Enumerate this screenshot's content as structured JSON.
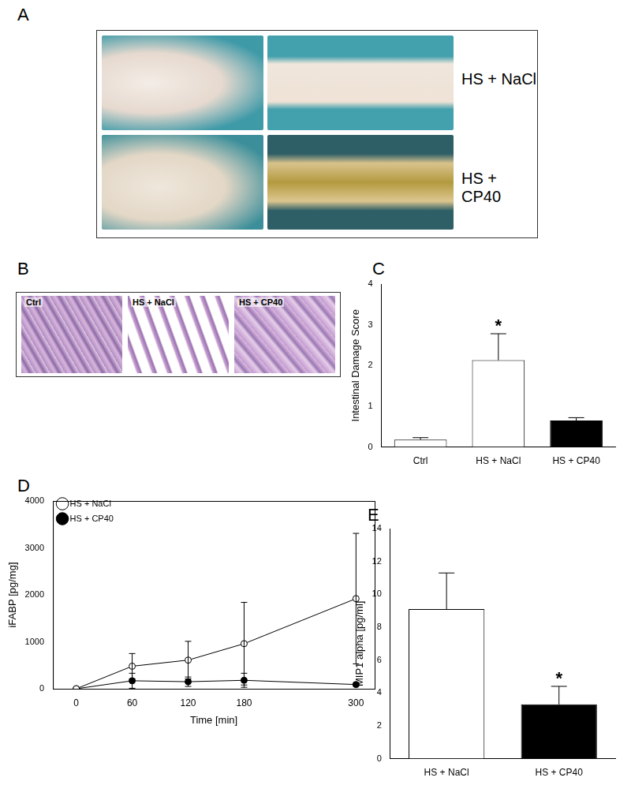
{
  "figure": {
    "panels": [
      {
        "letter": "A",
        "labels": [
          "HS + NaCl",
          "HS + CP40"
        ]
      },
      {
        "letter": "B",
        "labels": [
          "Ctrl",
          "HS + NaCl",
          "HS + CP40"
        ]
      }
    ]
  },
  "chart_data": [
    {
      "type": "bar",
      "title": "C",
      "categories": [
        "Ctrl",
        "HS + NaCl",
        "HS + CP40"
      ],
      "values": [
        0.18,
        2.13,
        0.65
      ],
      "errors": [
        0.05,
        0.65,
        0.07
      ],
      "colors": [
        "#ffffff",
        "#ffffff",
        "#000000"
      ],
      "ylabel": "Intestinal Damage Score",
      "ylim": [
        0,
        4
      ],
      "yticks": [
        0,
        1,
        2,
        3,
        4
      ],
      "grid": false,
      "annotations": [
        {
          "text": "*",
          "category": "HS + NaCl"
        }
      ]
    },
    {
      "type": "line",
      "title": "D",
      "xlabel": "Time [min]",
      "ylabel": "iFABP [pg/mg]",
      "x": [
        0,
        60,
        120,
        180,
        300
      ],
      "series": [
        {
          "name": "HS + NaCl",
          "color": "#000000",
          "marker": "open",
          "values": [
            0,
            480,
            610,
            960,
            1920
          ],
          "errors": [
            0,
            270,
            400,
            880,
            1390
          ]
        },
        {
          "name": "HS + CP40",
          "color": "#000000",
          "marker": "filled",
          "values": [
            0,
            170,
            150,
            180,
            90
          ],
          "errors": [
            0,
            160,
            100,
            150,
            30
          ]
        }
      ],
      "xlim": [
        -25,
        320
      ],
      "xticks": [
        0,
        60,
        120,
        180,
        300
      ],
      "ylim": [
        0,
        4000
      ],
      "yticks": [
        0,
        1000,
        2000,
        3000,
        4000
      ],
      "grid": false,
      "legend": "upper left"
    },
    {
      "type": "bar",
      "title": "E",
      "categories": [
        "HS + NaCl",
        "HS + CP40"
      ],
      "values": [
        9.1,
        3.3
      ],
      "errors": [
        2.2,
        1.1
      ],
      "colors": [
        "#ffffff",
        "#000000"
      ],
      "ylabel": "MIP1 alpha [pg/ml]",
      "ylim": [
        0,
        14
      ],
      "yticks": [
        0,
        2,
        4,
        6,
        8,
        10,
        12,
        14
      ],
      "grid": false,
      "annotations": [
        {
          "text": "*",
          "category": "HS + CP40"
        }
      ]
    }
  ]
}
